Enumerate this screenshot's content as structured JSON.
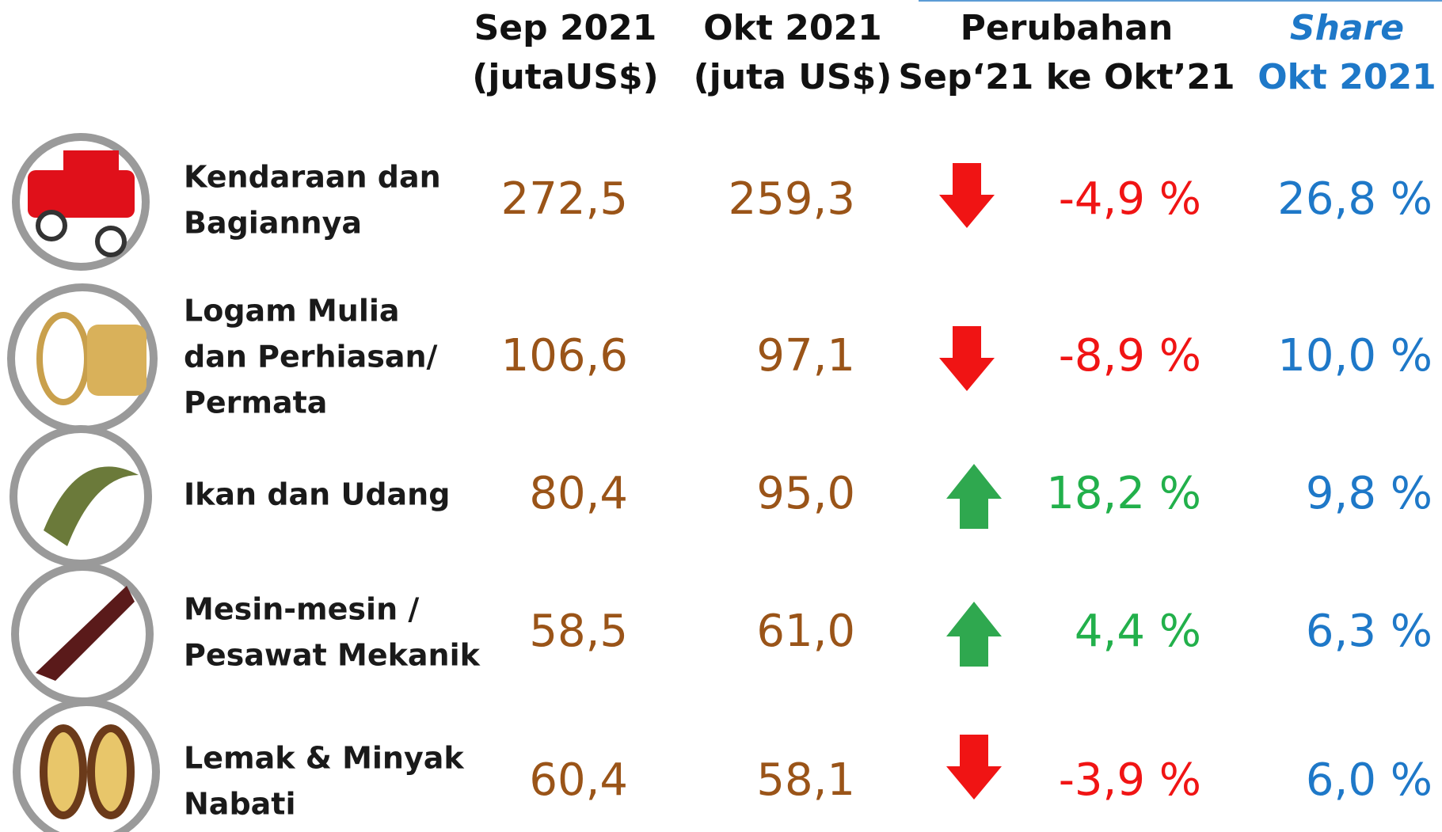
{
  "header": {
    "columns": [
      [
        "Sep 2021",
        "(jutaUS$)"
      ],
      [
        "Okt 2021",
        "(juta US$)"
      ],
      [
        "Perubahan",
        "Sep‘21 ke Okt’21"
      ],
      [
        "Share",
        "Okt 2021"
      ]
    ]
  },
  "table": {
    "rows": [
      {
        "label": [
          "Kendaraan dan",
          "Bagiannya"
        ],
        "sep": "272,5",
        "okt": "259,3",
        "change": "-4,9 %",
        "share": "26,8 %"
      },
      {
        "label": [
          "Logam Mulia",
          "dan Perhiasan/",
          "Permata"
        ],
        "sep": "106,6",
        "okt": "97,1",
        "change": "-8,9 %",
        "share": "10,0 %"
      },
      {
        "label": [
          "Ikan dan Udang"
        ],
        "sep": "80,4",
        "okt": "95,0",
        "change": "18,2 %",
        "share": "9,8 %"
      },
      {
        "label": [
          "Mesin-mesin /",
          "Pesawat Mekanik"
        ],
        "sep": "58,5",
        "okt": "61,0",
        "change": "4,4 %",
        "share": "6,3 %"
      },
      {
        "label": [
          "Lemak & Minyak",
          "Nabati"
        ],
        "sep": "60,4",
        "okt": "58,1",
        "change": "-3,9 %",
        "share": "6,0 %"
      }
    ]
  }
}
